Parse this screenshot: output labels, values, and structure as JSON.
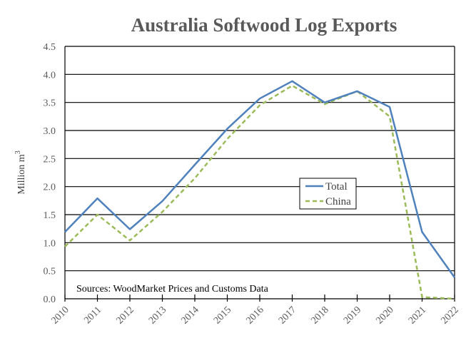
{
  "chart_data": {
    "type": "line",
    "title": "Australia Softwood Log Exports",
    "xlabel": "",
    "ylabel": "Million m³",
    "ylabel_base": "Million m",
    "ylabel_sup": "3",
    "x": [
      "2010",
      "2011",
      "2012",
      "2013",
      "2014",
      "2015",
      "2016",
      "2017",
      "2018",
      "2019",
      "2020",
      "2021",
      "2022"
    ],
    "series": [
      {
        "name": "Total",
        "color": "#4f81bd",
        "style": "solid",
        "values": [
          1.19,
          1.79,
          1.24,
          1.74,
          2.39,
          3.03,
          3.57,
          3.88,
          3.5,
          3.7,
          3.42,
          1.19,
          0.38
        ]
      },
      {
        "name": "China",
        "color": "#9bbb59",
        "style": "dashed",
        "values": [
          0.93,
          1.5,
          1.04,
          1.55,
          2.15,
          2.85,
          3.45,
          3.8,
          3.47,
          3.7,
          3.25,
          0.03,
          0.0
        ]
      }
    ],
    "ylim": [
      0,
      4.5
    ],
    "yticks": [
      "0.0",
      "0.5",
      "1.0",
      "1.5",
      "2.0",
      "2.5",
      "3.0",
      "3.5",
      "4.0",
      "4.5"
    ],
    "grid": true,
    "legend_position": "inside-center-right",
    "annotation": "Sources: WoodMarket Prices and Customs Data"
  }
}
